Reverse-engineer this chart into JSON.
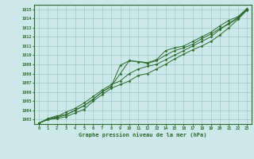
{
  "title": "Graphe pression niveau de la mer (hPa)",
  "xlabel_hours": [
    0,
    1,
    2,
    3,
    4,
    5,
    6,
    7,
    8,
    9,
    10,
    11,
    12,
    13,
    14,
    15,
    16,
    17,
    18,
    19,
    20,
    21,
    22,
    23
  ],
  "ylim": [
    1002.5,
    1015.5
  ],
  "yticks": [
    1003,
    1004,
    1005,
    1006,
    1007,
    1008,
    1009,
    1010,
    1011,
    1012,
    1013,
    1014,
    1015
  ],
  "background_color": "#cde8e8",
  "grid_color": "#9dc8c8",
  "line_color": "#2d6a2d",
  "series": [
    [
      1002.6,
      1003.1,
      1003.4,
      1003.5,
      1004.0,
      1004.5,
      1005.2,
      1006.0,
      1006.6,
      1008.9,
      1009.4,
      1009.3,
      1009.2,
      1009.5,
      1010.5,
      1010.8,
      1011.0,
      1011.5,
      1012.0,
      1012.5,
      1013.2,
      1013.8,
      1014.2,
      1015.1
    ],
    [
      1002.6,
      1003.0,
      1003.3,
      1003.8,
      1004.2,
      1004.8,
      1005.5,
      1006.2,
      1006.8,
      1007.2,
      1008.0,
      1008.5,
      1008.8,
      1009.0,
      1009.5,
      1010.0,
      1010.5,
      1011.0,
      1011.5,
      1012.0,
      1012.8,
      1013.5,
      1014.1,
      1015.0
    ],
    [
      1002.6,
      1003.0,
      1003.1,
      1003.3,
      1003.7,
      1004.1,
      1005.0,
      1005.7,
      1006.4,
      1006.8,
      1007.2,
      1007.8,
      1008.0,
      1008.5,
      1009.0,
      1009.6,
      1010.1,
      1010.6,
      1011.0,
      1011.5,
      1012.2,
      1013.0,
      1013.9,
      1014.9
    ],
    [
      1002.6,
      1003.0,
      1003.2,
      1003.5,
      1004.0,
      1004.5,
      1005.2,
      1006.0,
      1006.6,
      1008.0,
      1009.4,
      1009.3,
      1009.1,
      1009.4,
      1010.0,
      1010.5,
      1010.8,
      1011.2,
      1011.8,
      1012.3,
      1012.9,
      1013.4,
      1014.0,
      1015.0
    ]
  ]
}
